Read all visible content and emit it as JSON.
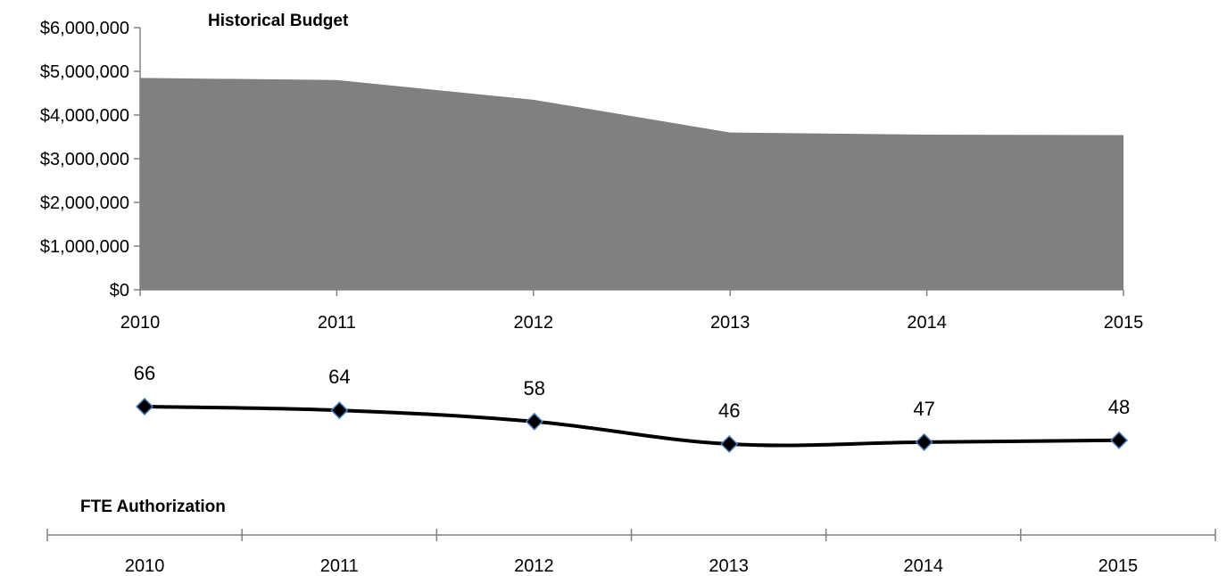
{
  "chart_data": [
    {
      "type": "area",
      "title": "Historical Budget",
      "xlabel": "",
      "ylabel": "",
      "categories": [
        "2010",
        "2011",
        "2012",
        "2013",
        "2014",
        "2015"
      ],
      "values": [
        4850000,
        4800000,
        4350000,
        3600000,
        3550000,
        3540000
      ],
      "ylim": [
        0,
        6000000
      ],
      "yticks": [
        "$0",
        "$1,000,000",
        "$2,000,000",
        "$3,000,000",
        "$4,000,000",
        "$5,000,000",
        "$6,000,000"
      ],
      "grid": false,
      "colors": {
        "area": "#808080",
        "axis": "#808080"
      }
    },
    {
      "type": "line",
      "title": "FTE Authorization",
      "xlabel": "",
      "ylabel": "",
      "categories": [
        "2010",
        "2011",
        "2012",
        "2013",
        "2014",
        "2015"
      ],
      "values": [
        66,
        64,
        58,
        46,
        47,
        48
      ],
      "data_labels": [
        "66",
        "64",
        "58",
        "46",
        "47",
        "48"
      ],
      "grid": false,
      "colors": {
        "line": "#000000",
        "marker_fill": "#000000",
        "marker_edge": "#4a7ebb",
        "axis": "#808080"
      }
    }
  ]
}
